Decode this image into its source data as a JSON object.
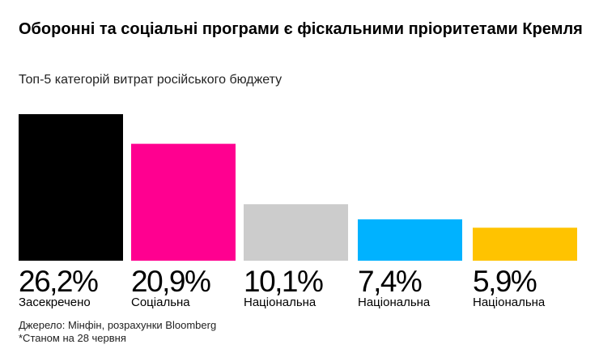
{
  "chart_data": {
    "type": "bar",
    "title": "Оборонні та соціальні програми є фіскальними пріоритетами Кремля",
    "subtitle": "Топ-5 категорій витрат російського бюджету",
    "categories": [
      "Засекречено",
      "Соціальна",
      "Національна",
      "Національна",
      "Національна"
    ],
    "values": [
      26.2,
      20.9,
      10.1,
      7.4,
      5.9
    ],
    "value_labels": [
      "26,2%",
      "20,9%",
      "10,1%",
      "7,4%",
      "5,9%"
    ],
    "colors": [
      "#000000",
      "#ff0090",
      "#cccccc",
      "#00b2ff",
      "#ffc300"
    ],
    "xlabel": "",
    "ylabel": "",
    "ylim": [
      0,
      26.2
    ],
    "grid": false
  },
  "footer": {
    "source": "Джерело: Мінфін, розрахунки Bloomberg",
    "note": "*Станом на 28 червня"
  }
}
